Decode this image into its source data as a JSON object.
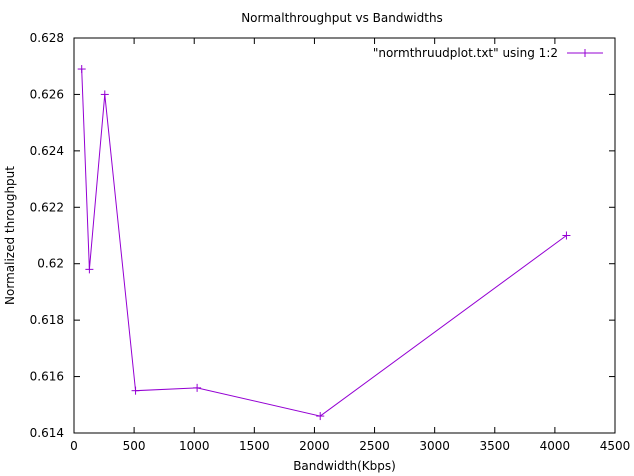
{
  "chart_data": {
    "type": "line",
    "title": "Normalthroughput vs Bandwidths",
    "xlabel": "Bandwidth(Kbps)",
    "ylabel": "Normalized throughput",
    "xlim": [
      0,
      4500
    ],
    "ylim": [
      0.614,
      0.628
    ],
    "xticks": [
      "0",
      "500",
      "1000",
      "1500",
      "2000",
      "2500",
      "3000",
      "3500",
      "4000",
      "4500"
    ],
    "yticks": [
      "0.614",
      "0.616",
      "0.618",
      "0.62",
      "0.622",
      "0.624",
      "0.626",
      "0.628"
    ],
    "grid": false,
    "legend_position": "top-right",
    "series": [
      {
        "name": "\"normthruudplot.txt\" using 1:2",
        "color": "#9400d3",
        "marker": "plus",
        "x": [
          64,
          128,
          256,
          512,
          1024,
          2048,
          4096
        ],
        "y": [
          0.6269,
          0.6198,
          0.626,
          0.6155,
          0.6156,
          0.6146,
          0.621
        ]
      }
    ]
  }
}
